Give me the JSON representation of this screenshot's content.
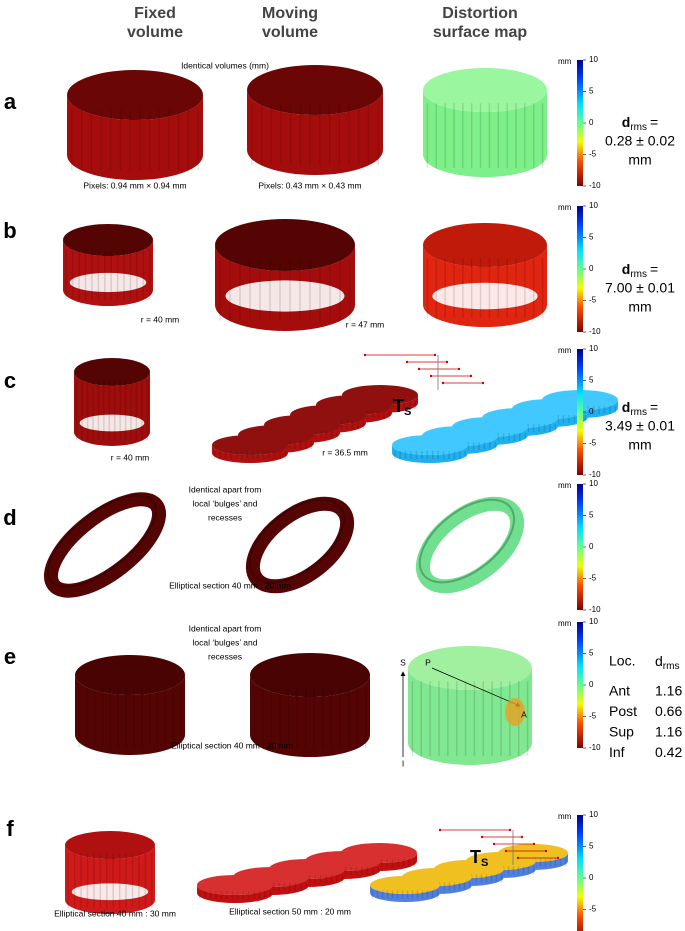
{
  "headers": [
    {
      "line1": "Fixed",
      "line2": "volume"
    },
    {
      "line1": "Moving",
      "line2": "volume"
    },
    {
      "line1": "Distortion",
      "line2": "surface map"
    }
  ],
  "colorbar": {
    "unit": "mm",
    "ticks": [
      10,
      5,
      0,
      -5,
      -10
    ]
  },
  "rows": [
    {
      "label": "a",
      "annotations": [
        "Identical volumes (mm)",
        "Pixels: 0.94 mm × 0.94 mm",
        "Pixels: 0.43 mm × 0.43 mm"
      ],
      "drms": {
        "symbol": "d",
        "subscript": "rms",
        "equals": "=",
        "value": "0.28 ± 0.02",
        "unit": "mm"
      }
    },
    {
      "label": "b",
      "annotations": [
        "r = 40 mm",
        "r = 47 mm"
      ],
      "drms": {
        "symbol": "d",
        "subscript": "rms",
        "equals": "=",
        "value": "7.00 ± 0.01",
        "unit": "mm"
      }
    },
    {
      "label": "c",
      "annotations": [
        "r = 40 mm",
        "r = 36.5 mm"
      ],
      "transform": {
        "symbol": "T",
        "subscript": "S"
      },
      "drms": {
        "symbol": "d",
        "subscript": "rms",
        "equals": "=",
        "value": "3.49 ± 0.01",
        "unit": "mm"
      }
    },
    {
      "label": "d",
      "annotations": [
        "Identical apart from",
        "local ‘bulges’ and",
        "recesses",
        "Elliptical section 40 mm : 20 mm"
      ]
    },
    {
      "label": "e",
      "annotations": [
        "Identical apart from",
        "local ‘bulges’ and",
        "recesses",
        "Elliptical section 40 mm : 20 mm"
      ],
      "axis_labels": [
        "S",
        "P",
        "I",
        "A"
      ],
      "table": {
        "header": {
          "loc": "Loc.",
          "symbol": "d",
          "subscript": "rms"
        },
        "rows": [
          [
            "Ant",
            1.16
          ],
          [
            "Post",
            0.66
          ],
          [
            "Sup",
            1.16
          ],
          [
            "Inf",
            0.42
          ]
        ]
      }
    },
    {
      "label": "f",
      "annotations": [
        "Elliptical section 40 mm : 30 mm",
        "Elliptical section 50 mm : 20 mm"
      ],
      "transform": {
        "symbol": "T",
        "subscript": "S"
      }
    }
  ]
}
